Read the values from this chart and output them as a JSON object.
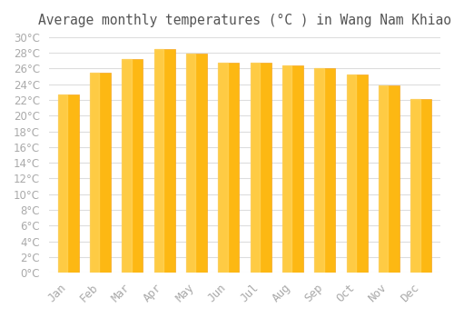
{
  "title": "Average monthly temperatures (°C ) in Wang Nam Khiao",
  "months": [
    "Jan",
    "Feb",
    "Mar",
    "Apr",
    "May",
    "Jun",
    "Jul",
    "Aug",
    "Sep",
    "Oct",
    "Nov",
    "Dec"
  ],
  "values": [
    22.7,
    25.5,
    27.2,
    28.5,
    27.9,
    26.8,
    26.7,
    26.4,
    26.1,
    25.3,
    23.8,
    22.1
  ],
  "bar_color_face": "#FDB813",
  "bar_color_edge": "#F5A623",
  "bar_gradient_top": "#FFD966",
  "background_color": "#FFFFFF",
  "grid_color": "#DDDDDD",
  "tick_label_color": "#AAAAAA",
  "title_color": "#555555",
  "ylim": [
    0,
    30
  ],
  "ytick_step": 2,
  "title_fontsize": 10.5
}
